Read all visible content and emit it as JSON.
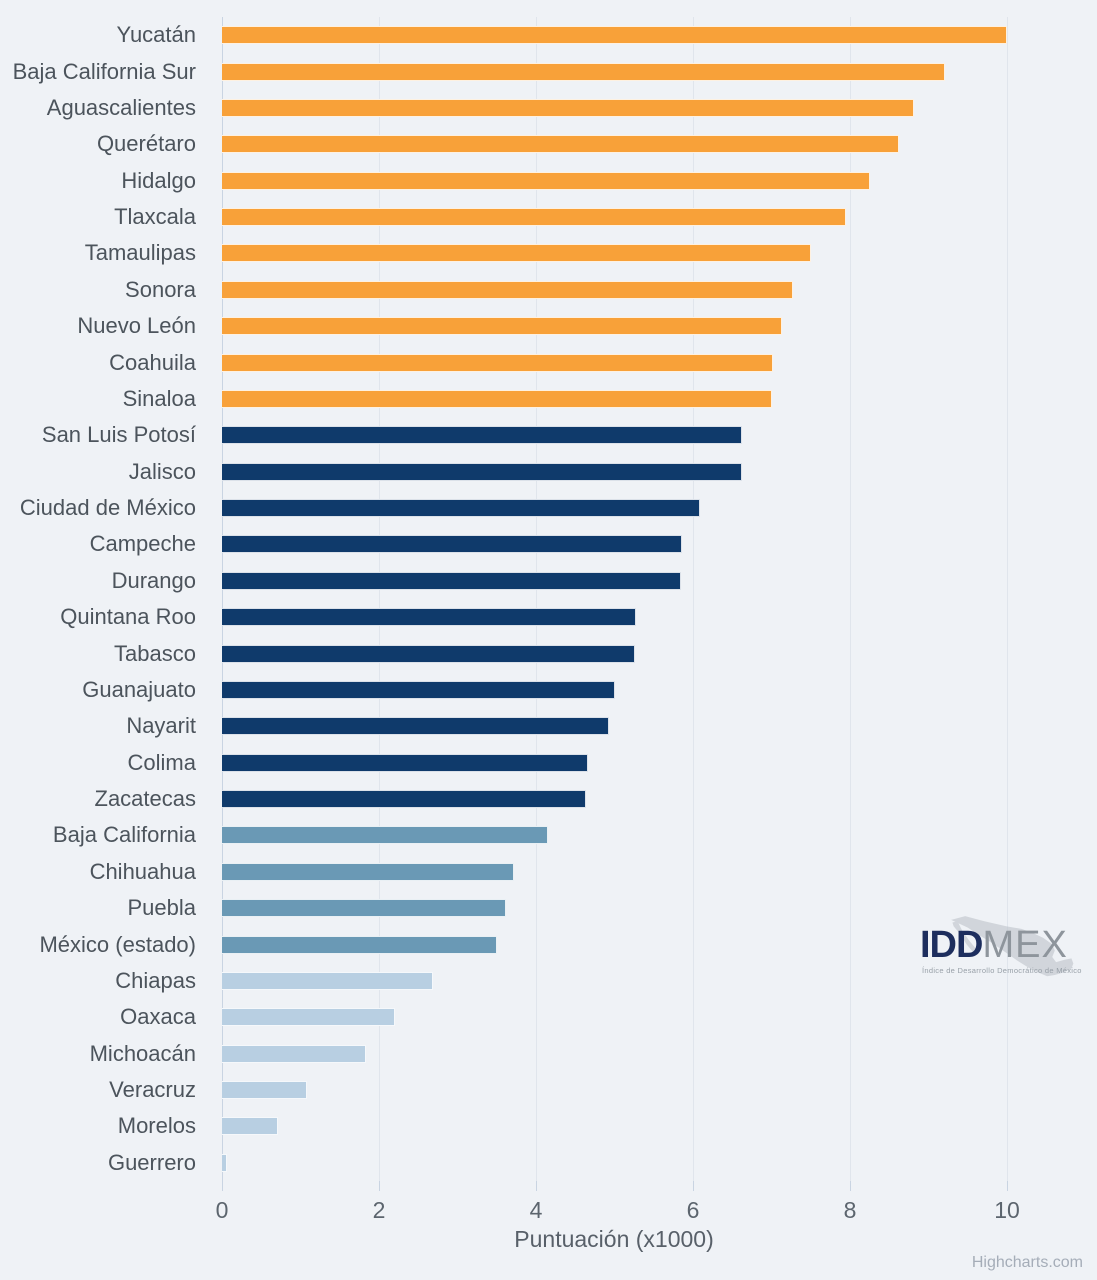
{
  "chart_data": {
    "type": "bar",
    "orientation": "horizontal",
    "title": "",
    "xlabel": "Puntuación (x1000)",
    "ylabel": "",
    "xlim": [
      0,
      10
    ],
    "xticks": [
      0,
      2,
      4,
      6,
      8,
      10
    ],
    "grid": "vertical",
    "legend": "none",
    "categories": [
      "Yucatán",
      "Baja California Sur",
      "Aguascalientes",
      "Querétaro",
      "Hidalgo",
      "Tlaxcala",
      "Tamaulipas",
      "Sonora",
      "Nuevo León",
      "Coahuila",
      "Sinaloa",
      "San Luis Potosí",
      "Jalisco",
      "Ciudad de México",
      "Campeche",
      "Durango",
      "Quintana Roo",
      "Tabasco",
      "Guanajuato",
      "Nayarit",
      "Colima",
      "Zacatecas",
      "Baja California",
      "Chihuahua",
      "Puebla",
      "México (estado)",
      "Chiapas",
      "Oaxaca",
      "Michoacán",
      "Veracruz",
      "Morelos",
      "Guerrero"
    ],
    "values": [
      10.0,
      9.21,
      8.81,
      8.62,
      8.26,
      7.95,
      7.5,
      7.28,
      7.13,
      7.02,
      7.0,
      6.63,
      6.62,
      6.09,
      5.86,
      5.85,
      5.27,
      5.26,
      5.01,
      4.93,
      4.66,
      4.64,
      4.15,
      3.72,
      3.62,
      3.5,
      2.69,
      2.2,
      1.83,
      1.08,
      0.71,
      0.06
    ],
    "tiers": [
      "orange",
      "orange",
      "orange",
      "orange",
      "orange",
      "orange",
      "orange",
      "orange",
      "orange",
      "orange",
      "orange",
      "navy",
      "navy",
      "navy",
      "navy",
      "navy",
      "navy",
      "navy",
      "navy",
      "navy",
      "navy",
      "navy",
      "steel",
      "steel",
      "steel",
      "steel",
      "light",
      "light",
      "light",
      "light",
      "light",
      "light"
    ],
    "tier_colors": {
      "orange": "#F8A139",
      "navy": "#0F3A6B",
      "steel": "#6A99B5",
      "light": "#B8CFE2"
    }
  },
  "axis": {
    "title": "Puntuación (x1000)",
    "tick_labels": [
      "0",
      "2",
      "4",
      "6",
      "8",
      "10"
    ]
  },
  "branding": {
    "credit": "Highcharts.com",
    "logo_idd": "IDD",
    "logo_mex": "MEX",
    "logo_tagline": "Índice de Desarrollo Democrático de México"
  },
  "colors": {
    "background": "#EFF2F6",
    "gridline": "#E0E5EC",
    "axis_line": "#C9D4E2",
    "category_label": "#4C545C",
    "tick_label": "#5C656E",
    "axis_title": "#586069",
    "credit": "#A5ADB8",
    "logo_navy": "#1D2E5E",
    "logo_gray": "#8E959C"
  }
}
